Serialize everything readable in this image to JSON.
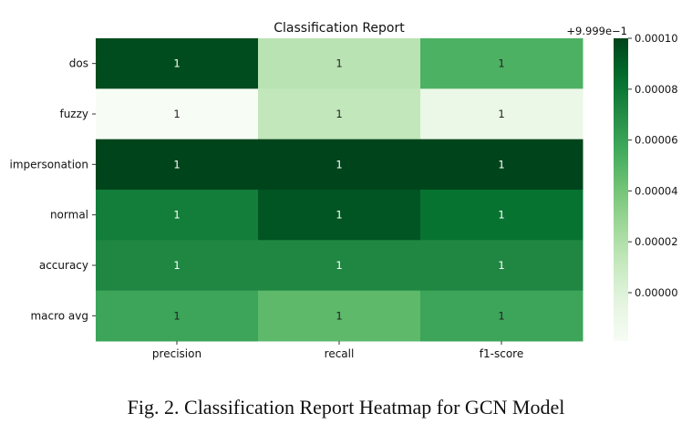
{
  "chart_data": {
    "type": "heatmap",
    "title": "Classification Report",
    "rows": [
      "dos",
      "fuzzy",
      "impersonation",
      "normal",
      "accuracy",
      "macro avg"
    ],
    "columns": [
      "precision",
      "recall",
      "f1-score"
    ],
    "cell_labels": [
      [
        "1",
        "1",
        "1"
      ],
      [
        "1",
        "1",
        "1"
      ],
      [
        "1",
        "1",
        "1"
      ],
      [
        "1",
        "1",
        "1"
      ],
      [
        "1",
        "1",
        "1"
      ],
      [
        "1",
        "1",
        "1"
      ]
    ],
    "values_offset": [
      [
        9.7e-05,
        1.6e-05,
        5.2e-05
      ],
      [
        -1.9e-05,
        1.3e-05,
        -9e-06
      ],
      [
        0.000108,
        0.000108,
        0.000108
      ],
      [
        7.7e-05,
        9.4e-05,
        8.2e-05
      ],
      [
        7.2e-05,
        7.2e-05,
        7.2e-05
      ],
      [
        5.8e-05,
        4.7e-05,
        5.8e-05
      ]
    ],
    "colorbar": {
      "offset_label": "+9.999e−1",
      "ticks": [
        "0.00000",
        "0.00002",
        "0.00004",
        "0.00006",
        "0.00008",
        "0.00010"
      ],
      "tick_values": [
        0.0,
        2e-05,
        4e-05,
        6e-05,
        8e-05,
        0.0001
      ],
      "vmin": -1.9e-05,
      "vmax": 0.0001,
      "colormap": "Greens"
    }
  },
  "caption": "Fig. 2.  Classification Report Heatmap for GCN Model"
}
